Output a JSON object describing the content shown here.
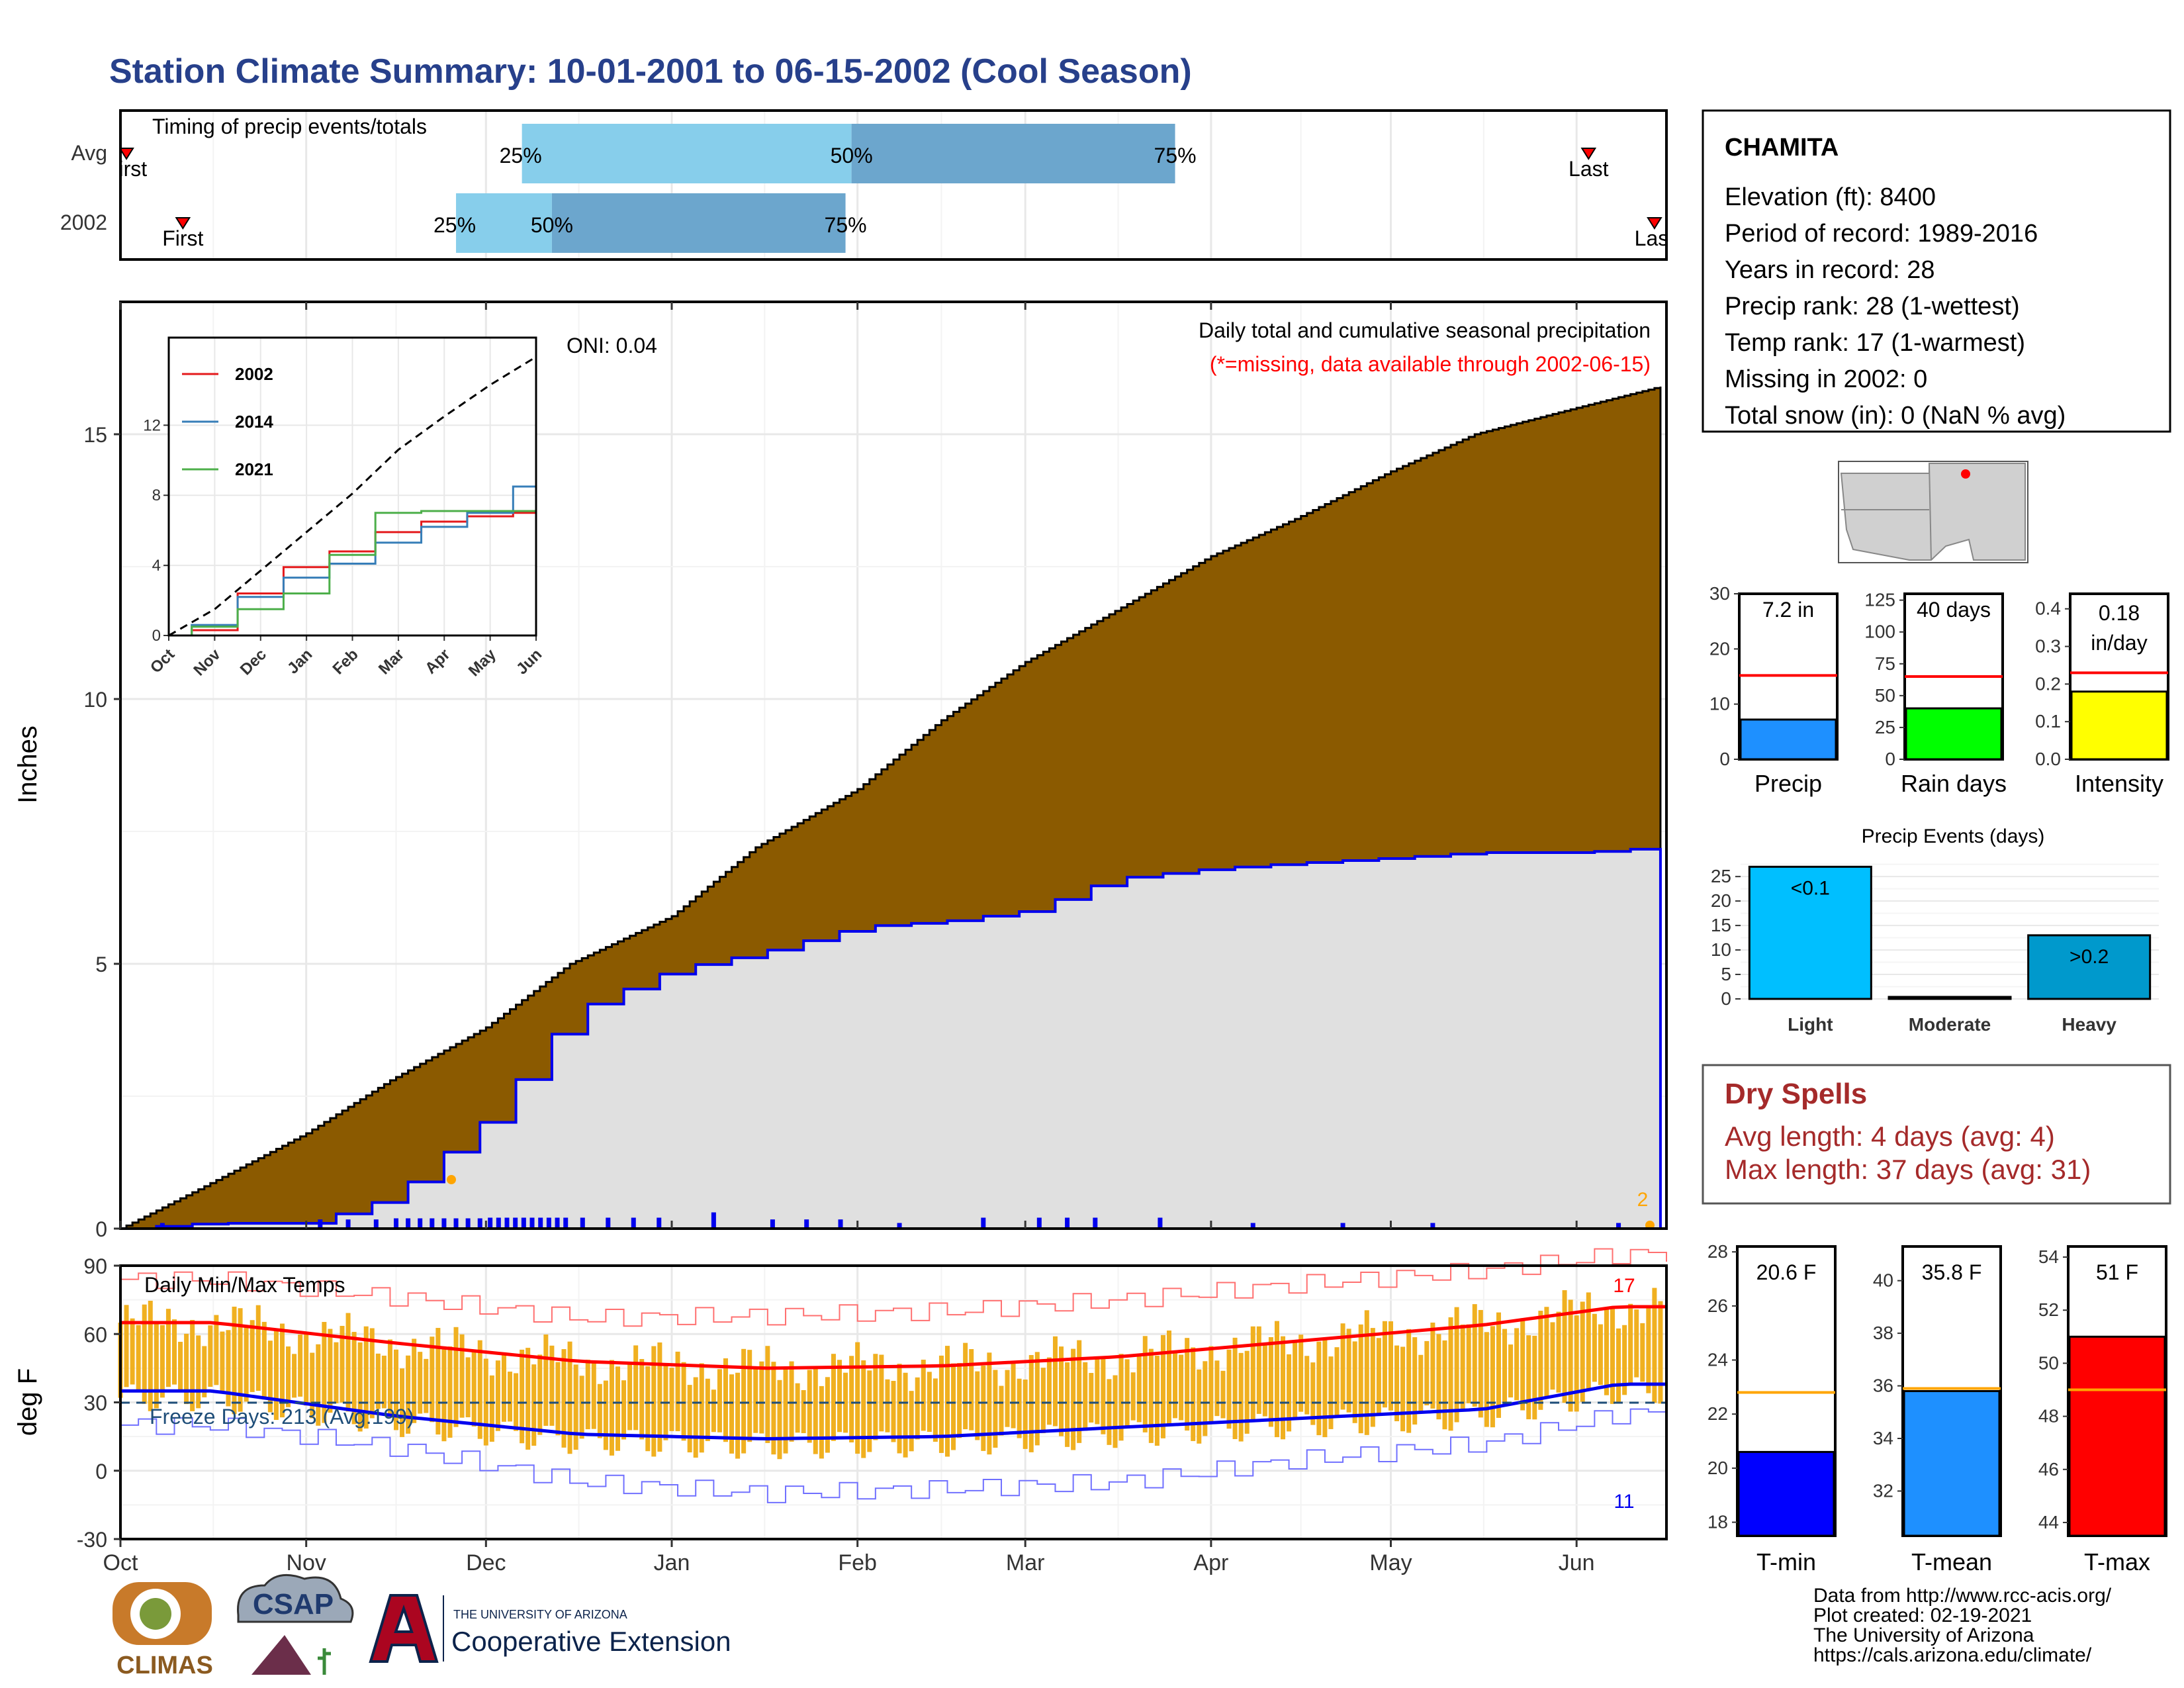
{
  "title": "Station Climate Summary: 10-01-2001 to 06-15-2002 (Cool Season)",
  "colors": {
    "title": "#27408B",
    "precip_fill": "#8B5A00",
    "missing_fill": "#E0E0E0",
    "line_blue": "#0000EE",
    "tmp_bar": "#F0B020",
    "red": "#FF0000",
    "dry_text": "#A52A2A",
    "orange": "#FFA500"
  },
  "months": [
    "Oct",
    "Nov",
    "Dec",
    "Jan",
    "Feb",
    "Mar",
    "Apr",
    "May",
    "Jun"
  ],
  "timing": {
    "title": "Timing of precip events/totals",
    "rows": [
      {
        "label": "Avg",
        "first": "First",
        "last": "Last",
        "p25": "25%",
        "p50": "50%",
        "p75": "75%"
      },
      {
        "label": "2002",
        "first": "First",
        "last": "Last",
        "p25": "25%",
        "p50": "50%",
        "p75": "75%"
      }
    ]
  },
  "precip": {
    "ylabel": "Inches",
    "oni": "ONI: 0.04",
    "legend_line1": "Daily total and cumulative seasonal precipitation",
    "legend_line2": "(*=missing, data available through 2002-06-15)",
    "missing_count": "2",
    "yticks": [
      "0",
      "5",
      "10",
      "15"
    ]
  },
  "inset": {
    "series": [
      {
        "name": "2002",
        "color": "#E41A1C"
      },
      {
        "name": "2014",
        "color": "#377EB8"
      },
      {
        "name": "2021",
        "color": "#4DAF4A"
      }
    ],
    "yticks": [
      "0",
      "4",
      "8",
      "12"
    ]
  },
  "temps": {
    "ylabel": "deg F",
    "title": "Daily Min/Max Temps",
    "freeze": "Freeze Days: 213 (Avg:199)",
    "max_count": "17",
    "min_count": "11",
    "yticks": [
      "-30",
      "0",
      "30",
      "60",
      "90"
    ]
  },
  "station": {
    "name": "CHAMITA",
    "lines": [
      "Elevation (ft): 8400",
      "Period of record: 1989-2016",
      "Years in record: 28",
      "Precip rank: 28 (1-wettest)",
      "Temp rank: 17 (1-warmest)",
      "Missing in 2002: 0",
      "Total snow (in): 0 (NaN % avg)"
    ]
  },
  "mini_bars": [
    {
      "label": "Precip",
      "value_text": "7.2 in",
      "yticks": [
        "0",
        "10",
        "20",
        "30"
      ]
    },
    {
      "label": "Rain days",
      "value_text": "40 days",
      "yticks": [
        "0",
        "25",
        "50",
        "75",
        "100",
        "125"
      ]
    },
    {
      "label": "Intensity",
      "value_text_1": "0.18",
      "value_text_2": "in/day",
      "yticks": [
        "0.0",
        "0.1",
        "0.2",
        "0.3",
        "0.4"
      ]
    }
  ],
  "events": {
    "title": "Precip Events (days)",
    "categories": [
      "Light",
      "Moderate",
      "Heavy"
    ],
    "labels": [
      "<0.1",
      "",
      ">0.2"
    ],
    "yticks": [
      "0",
      "5",
      "10",
      "15",
      "20",
      "25"
    ]
  },
  "dry": {
    "title": "Dry Spells",
    "avg": "Avg length: 4 days (avg: 4)",
    "max": "Max length: 37 days (avg: 31)"
  },
  "temp_bars": [
    {
      "label": "T-min",
      "value_text": "20.6 F",
      "yticks": [
        "18",
        "20",
        "22",
        "24",
        "26",
        "28"
      ]
    },
    {
      "label": "T-mean",
      "value_text": "35.8 F",
      "yticks": [
        "32",
        "34",
        "36",
        "38",
        "40"
      ]
    },
    {
      "label": "T-max",
      "value_text": "51 F",
      "yticks": [
        "44",
        "46",
        "48",
        "50",
        "52",
        "54"
      ]
    }
  ],
  "footer": {
    "climas": "CLIMAS",
    "csap": "CSAP",
    "ua_small": "THE UNIVERSITY OF ARIZONA",
    "coop": "Cooperative Extension",
    "credit": [
      "Data from http://www.rcc-acis.org/",
      "Plot created: 02-19-2021",
      "The University of Arizona",
      "https://cals.arizona.edu/climate/"
    ]
  },
  "chart_data": [
    {
      "type": "bar",
      "name": "timing",
      "categories": [
        "Avg",
        "2002"
      ],
      "xlim_days": [
        0,
        258
      ],
      "first_day": [
        1,
        6
      ],
      "last_day": [
        245,
        256
      ],
      "p25_day": [
        67,
        56
      ],
      "p50_day": [
        122,
        72
      ],
      "p75_day": [
        176,
        121
      ]
    },
    {
      "type": "area",
      "name": "cumulative_precip",
      "x": [
        "2001-10-01",
        "2001-10-15",
        "2001-11-01",
        "2001-11-15",
        "2001-12-01",
        "2001-12-15",
        "2002-01-01",
        "2002-01-15",
        "2002-02-01",
        "2002-02-15",
        "2002-03-01",
        "2002-03-15",
        "2002-04-01",
        "2002-04-15",
        "2002-05-01",
        "2002-05-15",
        "2002-06-01",
        "2002-06-15"
      ],
      "avg_cumulative": [
        0.0,
        0.8,
        1.8,
        2.8,
        3.8,
        5.0,
        5.9,
        7.2,
        8.3,
        9.6,
        10.7,
        11.6,
        12.7,
        13.4,
        14.3,
        15.0,
        15.5,
        15.9
      ],
      "y2002_cumulative": [
        0.0,
        0.1,
        0.1,
        0.6,
        2.1,
        4.1,
        4.9,
        5.2,
        5.7,
        5.8,
        6.0,
        6.6,
        6.8,
        6.9,
        7.0,
        7.1,
        7.1,
        7.2
      ],
      "ylim": [
        0,
        17.5
      ],
      "ylabel": "Inches"
    },
    {
      "type": "line",
      "name": "inset_cumulative",
      "x": [
        "Oct",
        "Nov",
        "Dec",
        "Jan",
        "Feb",
        "Mar",
        "Apr",
        "May",
        "Jun"
      ],
      "series": [
        {
          "name": "2002",
          "values": [
            0,
            0.3,
            2.4,
            3.9,
            4.8,
            5.9,
            6.5,
            6.8,
            7.0
          ]
        },
        {
          "name": "2014",
          "values": [
            0,
            0.6,
            2.2,
            3.3,
            4.1,
            5.3,
            6.2,
            7.0,
            8.5
          ]
        },
        {
          "name": "2021",
          "values": [
            0,
            0.5,
            1.5,
            2.4,
            4.6,
            7.0,
            7.1,
            7.1,
            7.1
          ]
        },
        {
          "values": [
            0,
            1.5,
            3.7,
            5.9,
            8.1,
            10.6,
            12.5,
            14.3,
            15.9
          ]
        }
      ],
      "ylim": [
        0,
        17
      ]
    },
    {
      "type": "line",
      "name": "daily_temps",
      "x": [
        "Oct",
        "Nov",
        "Dec",
        "Jan",
        "Feb",
        "Mar",
        "Apr",
        "May",
        "Jun"
      ],
      "series": [
        {
          "name": "avg_max",
          "values": [
            65,
            56,
            48,
            45,
            46,
            50,
            57,
            64,
            72
          ]
        },
        {
          "name": "avg_min",
          "values": [
            35,
            24,
            16,
            14,
            15,
            19,
            23,
            27,
            38
          ]
        },
        {
          "name": "record_max",
          "values": [
            84,
            76,
            67,
            68,
            70,
            75,
            82,
            88,
            95
          ]
        },
        {
          "name": "record_min",
          "values": [
            20,
            10,
            -5,
            -10,
            -8,
            -5,
            5,
            12,
            25
          ]
        }
      ],
      "freeze_line": 32,
      "ylim": [
        -30,
        90
      ],
      "ylabel": "deg F"
    },
    {
      "type": "bar",
      "name": "precip_total",
      "categories": [
        "Precip"
      ],
      "values": [
        7.2
      ],
      "avg": 15.2,
      "ylim": [
        0,
        30
      ]
    },
    {
      "type": "bar",
      "name": "rain_days",
      "categories": [
        "Rain days"
      ],
      "values": [
        40
      ],
      "avg": 65,
      "ylim": [
        0,
        130
      ]
    },
    {
      "type": "bar",
      "name": "intensity",
      "categories": [
        "Intensity"
      ],
      "values": [
        0.18
      ],
      "avg": 0.23,
      "ylim": [
        0,
        0.44
      ]
    },
    {
      "type": "bar",
      "name": "precip_events",
      "categories": [
        "Light",
        "Moderate",
        "Heavy"
      ],
      "values": [
        27,
        0,
        13
      ],
      "ylim": [
        0,
        28
      ]
    },
    {
      "type": "bar",
      "name": "tmin",
      "categories": [
        "T-min"
      ],
      "values": [
        20.6
      ],
      "avg": 22.8,
      "ylim": [
        17.5,
        28.2
      ]
    },
    {
      "type": "bar",
      "name": "tmean",
      "categories": [
        "T-mean"
      ],
      "values": [
        35.8
      ],
      "avg": 35.9,
      "ylim": [
        30.3,
        41.3
      ]
    },
    {
      "type": "bar",
      "name": "tmax",
      "categories": [
        "T-max"
      ],
      "values": [
        51
      ],
      "avg": 49,
      "ylim": [
        43.5,
        54.4
      ]
    }
  ]
}
